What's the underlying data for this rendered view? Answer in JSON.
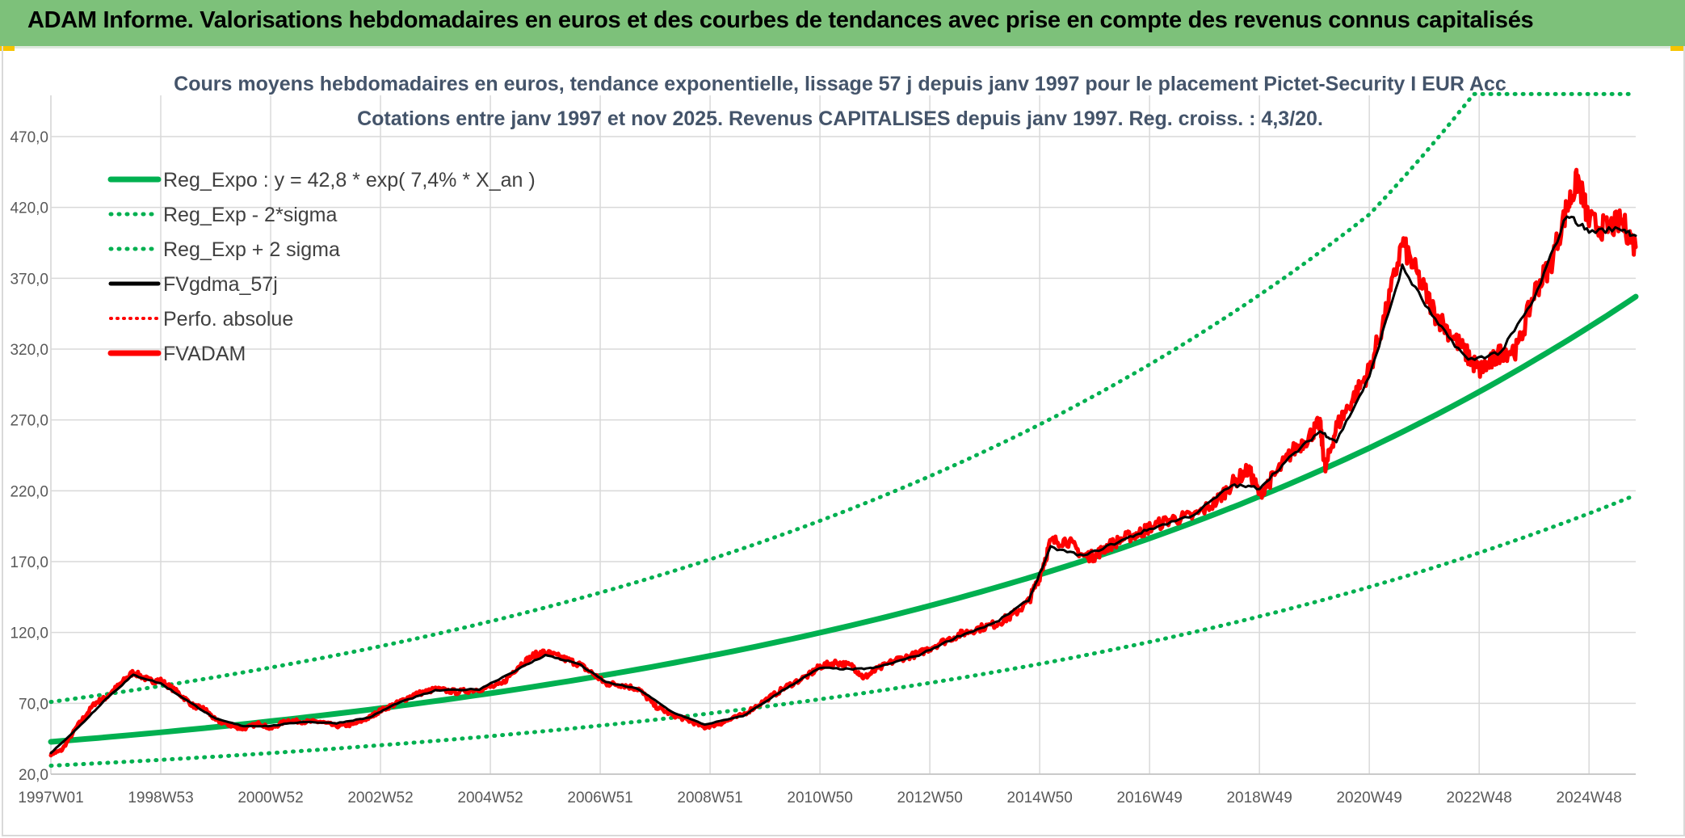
{
  "header": {
    "title": "ADAM Informe. Valorisations hebdomadaires en euros et des courbes de tendances avec prise en compte des revenus connus capitalisés"
  },
  "colors": {
    "header_bg": "#7dc17a",
    "reg_expo": "#00b050",
    "fvgdma": "#000000",
    "fvadam": "#ff0000",
    "perfo": "#ff0000",
    "accent_corner": "#f5c400"
  },
  "chart_data": {
    "type": "line",
    "title": "Cours moyens hebdomadaires en euros, tendance exponentielle, lissage 57 j depuis janv 1997 pour le placement Pictet-Security I EUR Acc",
    "subtitle": "Cotations entre janv 1997 et nov 2025. Revenus CAPITALISES depuis janv 1997. Reg. croiss. : 4,3/20.",
    "xlabel": "",
    "ylabel": "",
    "ylim": [
      20,
      500
    ],
    "xlim": [
      1997.0,
      2025.85
    ],
    "grid": true,
    "legend_position": "top-left",
    "y_ticks": [
      "20,0",
      "70,0",
      "120,0",
      "170,0",
      "220,0",
      "270,0",
      "320,0",
      "370,0",
      "420,0",
      "470,0"
    ],
    "y_tick_values": [
      20,
      70,
      120,
      170,
      220,
      270,
      320,
      370,
      420,
      470
    ],
    "x_ticks": [
      "1997W01",
      "1998W53",
      "2000W52",
      "2002W52",
      "2004W52",
      "2006W51",
      "2008W51",
      "2010W50",
      "2012W50",
      "2014W50",
      "2016W49",
      "2018W49",
      "2020W49",
      "2022W48",
      "2024W48"
    ],
    "x_tick_values": [
      1997.0,
      1999.0,
      2001.0,
      2003.0,
      2005.0,
      2007.0,
      2009.0,
      2011.0,
      2013.0,
      2015.0,
      2017.0,
      2019.0,
      2021.0,
      2023.0,
      2025.0
    ],
    "legend": [
      {
        "label": "Reg_Expo : y = 42,8 * exp( 7,4% *  X_an )",
        "color": "#00b050",
        "style": "solid"
      },
      {
        "label": "Reg_Exp - 2*sigma",
        "color": "#00b050",
        "style": "dotted"
      },
      {
        "label": "Reg_Exp + 2 sigma",
        "color": "#00b050",
        "style": "dotted"
      },
      {
        "label": "FVgdma_57j",
        "color": "#000000",
        "style": "solid"
      },
      {
        "label": "Perfo. absolue",
        "color": "#ff0000",
        "style": "dotted"
      },
      {
        "label": "FVADAM",
        "color": "#ff0000",
        "style": "solid-thick"
      }
    ],
    "series": [
      {
        "name": "Reg_Expo : y = 42,8 * exp( 7,4% *  X_an )",
        "x": [
          1997.0,
          2000.0,
          2003.0,
          2006.0,
          2009.0,
          2012.0,
          2015.0,
          2018.0,
          2021.0,
          2024.0,
          2025.85
        ],
        "values": [
          42.8,
          53.3,
          66.5,
          83.0,
          103.5,
          129.0,
          160.9,
          200.7,
          250.2,
          312.0,
          357.0
        ]
      },
      {
        "name": "Reg_Exp - 2*sigma",
        "x": [
          1997.0,
          2000.0,
          2003.0,
          2006.0,
          2009.0,
          2012.0,
          2015.0,
          2018.0,
          2021.0,
          2024.0,
          2025.85
        ],
        "values": [
          26.0,
          32.4,
          40.4,
          50.4,
          62.9,
          78.4,
          97.8,
          122.0,
          152.1,
          189.7,
          217.0
        ]
      },
      {
        "name": "Reg_Exp + 2 sigma",
        "x": [
          1997.0,
          2000.0,
          2003.0,
          2006.0,
          2009.0,
          2012.0,
          2015.0,
          2018.0,
          2021.0,
          2022.9,
          2025.85
        ],
        "values": [
          71.0,
          88.5,
          110.3,
          137.6,
          171.6,
          214.0,
          266.8,
          332.8,
          415.0,
          500.0,
          500.0
        ]
      },
      {
        "name": "FVADAM",
        "x": [
          1997.0,
          1997.2,
          1997.5,
          1997.8,
          1998.0,
          1998.3,
          1998.5,
          1998.8,
          1999.0,
          1999.3,
          1999.6,
          1999.8,
          2000.0,
          2000.3,
          2000.5,
          2000.8,
          2001.0,
          2001.3,
          2001.6,
          2001.9,
          2002.2,
          2002.5,
          2002.8,
          2003.0,
          2003.3,
          2003.6,
          2004.0,
          2004.4,
          2004.8,
          2005.2,
          2005.5,
          2005.8,
          2006.0,
          2006.3,
          2006.6,
          2006.9,
          2007.1,
          2007.4,
          2007.7,
          2008.0,
          2008.3,
          2008.6,
          2008.9,
          2009.2,
          2009.6,
          2010.0,
          2010.4,
          2010.8,
          2011.0,
          2011.3,
          2011.6,
          2011.8,
          2012.0,
          2012.4,
          2012.8,
          2013.1,
          2013.5,
          2013.8,
          2014.2,
          2014.5,
          2014.8,
          2015.0,
          2015.2,
          2015.5,
          2015.8,
          2016.0,
          2016.2,
          2016.5,
          2016.8,
          2017.0,
          2017.4,
          2017.8,
          2018.2,
          2018.5,
          2018.8,
          2019.0,
          2019.3,
          2019.6,
          2019.9,
          2020.1,
          2020.2,
          2020.4,
          2020.7,
          2021.0,
          2021.3,
          2021.6,
          2021.9,
          2022.2,
          2022.5,
          2022.8,
          2023.0,
          2023.2,
          2023.4,
          2023.7,
          2024.0,
          2024.3,
          2024.6,
          2024.8,
          2025.0,
          2025.3,
          2025.6,
          2025.85
        ],
        "values": [
          34,
          37,
          55,
          70,
          74,
          85,
          92,
          86,
          86,
          78,
          68,
          66,
          58,
          54,
          52,
          56,
          52,
          58,
          57,
          57,
          54,
          55,
          60,
          65,
          70,
          76,
          80,
          78,
          80,
          83,
          96,
          104,
          106,
          102,
          98,
          90,
          84,
          83,
          80,
          68,
          62,
          58,
          53,
          56,
          62,
          72,
          82,
          90,
          96,
          99,
          96,
          88,
          93,
          101,
          105,
          111,
          118,
          122,
          126,
          132,
          142,
          160,
          184,
          185,
          174,
          174,
          180,
          186,
          190,
          194,
          200,
          202,
          212,
          225,
          235,
          218,
          232,
          248,
          258,
          268,
          235,
          265,
          285,
          305,
          345,
          395,
          370,
          345,
          330,
          315,
          305,
          310,
          318,
          320,
          360,
          380,
          420,
          440,
          410,
          405,
          410,
          392
        ]
      },
      {
        "name": "FVgdma_57j",
        "x": [
          1997.0,
          1997.5,
          1998.0,
          1998.5,
          1999.0,
          1999.6,
          2000.0,
          2000.5,
          2001.0,
          2001.6,
          2002.2,
          2002.8,
          2003.3,
          2004.0,
          2004.8,
          2005.5,
          2006.0,
          2006.6,
          2007.1,
          2007.7,
          2008.3,
          2008.9,
          2009.6,
          2010.4,
          2011.0,
          2011.6,
          2012.0,
          2012.8,
          2013.5,
          2014.2,
          2014.8,
          2015.2,
          2015.8,
          2016.5,
          2017.0,
          2017.8,
          2018.5,
          2019.0,
          2019.6,
          2020.1,
          2020.4,
          2021.0,
          2021.6,
          2022.2,
          2022.8,
          2023.4,
          2024.0,
          2024.6,
          2025.0,
          2025.6,
          2025.85
        ],
        "values": [
          35,
          53,
          73,
          90,
          84,
          69,
          59,
          54,
          54,
          57,
          56,
          60,
          70,
          79,
          80,
          94,
          104,
          98,
          85,
          80,
          64,
          55,
          61,
          81,
          95,
          94,
          95,
          104,
          117,
          127,
          143,
          180,
          174,
          185,
          193,
          203,
          224,
          222,
          245,
          262,
          255,
          300,
          378,
          340,
          312,
          318,
          355,
          415,
          403,
          405,
          400
        ]
      }
    ]
  }
}
